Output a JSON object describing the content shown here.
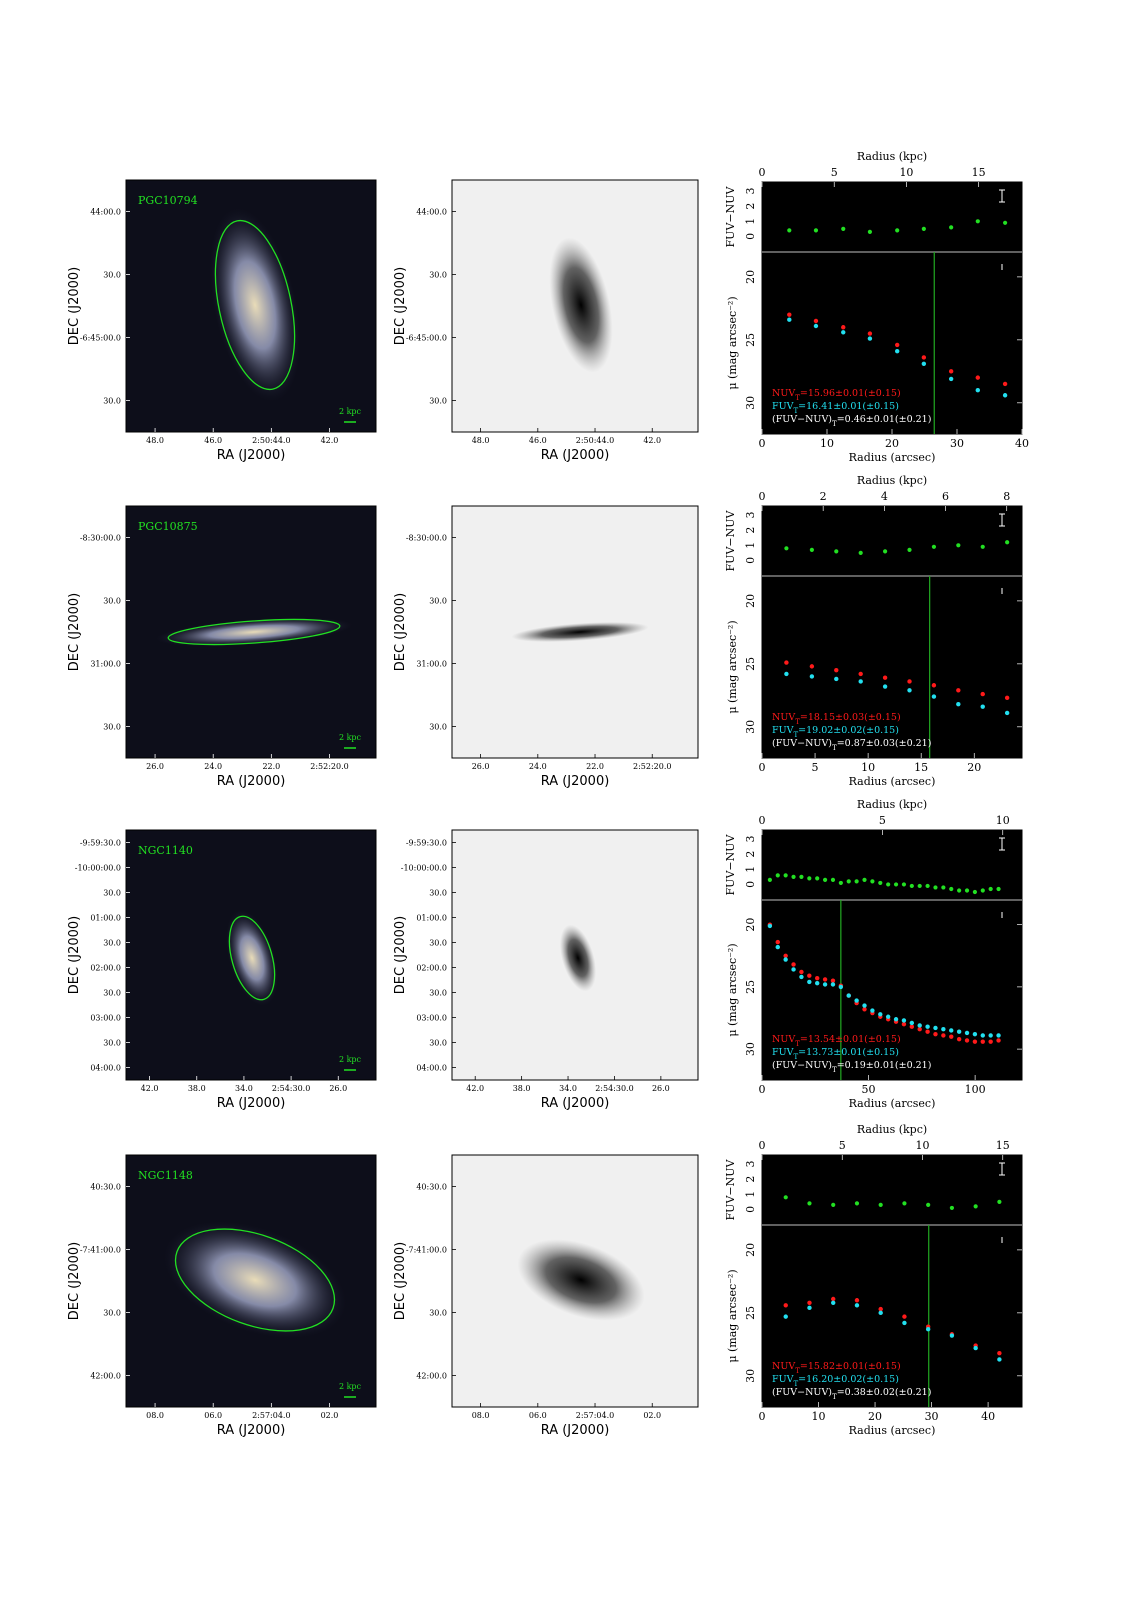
{
  "figure": {
    "rows": [
      {
        "galaxy": "PGC10794",
        "scalebar": "2 kpc",
        "ra_ticks": [
          "48.0",
          "46.0",
          "2:50:44.0",
          "42.0"
        ],
        "dec_ticks": [
          "44:00.0",
          "30.0",
          "-6:45:00.0",
          "30.0"
        ],
        "ra_label": "RA (J2000)",
        "dec_label": "DEC (J2000)",
        "kpc_ticks": [
          "0",
          "5",
          "10",
          "15"
        ],
        "kpc_max": 18,
        "arcsec_ticks": [
          "0",
          "10",
          "20",
          "30",
          "40"
        ],
        "arcsec_max": 40,
        "color_ticks": [
          "3",
          "2",
          "1",
          "0"
        ],
        "sb_ticks": [
          "20",
          "25",
          "30"
        ],
        "radius_kpc_label": "Radius (kpc)",
        "radius_arcsec_label": "Radius (arcsec)",
        "color_label": "FUV−NUV",
        "sb_label": "μ (mag arcsec⁻²)",
        "vline_arcsec": 26.5,
        "nuv_text": "NUV_T=15.96±0.01(±0.15)",
        "fuv_text": "FUV_T=16.41±0.01(±0.15)",
        "col_text": "(FUV−NUV)_T=0.46±0.01(±0.21)",
        "profile": {
          "r": [
            4.2,
            8.3,
            12.5,
            16.6,
            20.8,
            24.9,
            29.1,
            33.2,
            37.4
          ],
          "nuv": [
            23.0,
            23.5,
            24.0,
            24.5,
            25.4,
            26.4,
            27.5,
            28.0,
            28.5
          ],
          "fuv": [
            23.4,
            23.9,
            24.4,
            24.9,
            25.9,
            26.9,
            28.1,
            29.0,
            29.4
          ],
          "color": [
            0.4,
            0.4,
            0.5,
            0.3,
            0.4,
            0.5,
            0.6,
            1.0,
            0.9
          ]
        }
      },
      {
        "galaxy": "PGC10875",
        "scalebar": "2 kpc",
        "ra_ticks": [
          "26.0",
          "24.0",
          "22.0",
          "2:52:20.0"
        ],
        "dec_ticks": [
          "-8:30:00.0",
          "30.0",
          "31:00.0",
          "30.0"
        ],
        "ra_label": "RA (J2000)",
        "dec_label": "DEC (J2000)",
        "kpc_ticks": [
          "0",
          "2",
          "4",
          "6",
          "8"
        ],
        "kpc_max": 8.5,
        "arcsec_ticks": [
          "0",
          "5",
          "10",
          "15",
          "20"
        ],
        "arcsec_max": 24.5,
        "color_ticks": [
          "3",
          "2",
          "1",
          "0"
        ],
        "sb_ticks": [
          "20",
          "25",
          "30"
        ],
        "radius_kpc_label": "Radius (kpc)",
        "radius_arcsec_label": "Radius (arcsec)",
        "color_label": "FUV−NUV",
        "sb_label": "μ (mag arcsec⁻²)",
        "vline_arcsec": 15.8,
        "nuv_text": "NUV_T=18.15±0.03(±0.15)",
        "fuv_text": "FUV_T=19.02±0.02(±0.15)",
        "col_text": "(FUV−NUV)_T=0.87±0.03(±0.21)",
        "profile": {
          "r": [
            2.3,
            4.7,
            7.0,
            9.3,
            11.6,
            13.9,
            16.2,
            18.5,
            20.8,
            23.1
          ],
          "nuv": [
            24.9,
            25.2,
            25.5,
            25.8,
            26.1,
            26.4,
            26.7,
            27.1,
            27.4,
            27.7
          ],
          "fuv": [
            25.8,
            26.0,
            26.2,
            26.4,
            26.8,
            27.1,
            27.6,
            28.2,
            28.4,
            28.9
          ],
          "color": [
            0.8,
            0.7,
            0.6,
            0.5,
            0.6,
            0.7,
            0.9,
            1.0,
            0.9,
            1.2
          ]
        }
      },
      {
        "galaxy": "NGC1140",
        "scalebar": "2 kpc",
        "ra_ticks": [
          "42.0",
          "38.0",
          "34.0",
          "2:54:30.0",
          "26.0"
        ],
        "dec_ticks": [
          "-9:59:30.0",
          "-10:00:00.0",
          "30.0",
          "01:00.0",
          "30.0",
          "02:00.0",
          "30.0",
          "03:00.0",
          "30.0",
          "04:00.0"
        ],
        "ra_label": "RA (J2000)",
        "dec_label": "DEC (J2000)",
        "kpc_ticks": [
          "0",
          "5",
          "10"
        ],
        "kpc_max": 10.8,
        "arcsec_ticks": [
          "0",
          "50",
          "100"
        ],
        "arcsec_max": 122,
        "color_ticks": [
          "3",
          "2",
          "1",
          "0"
        ],
        "sb_ticks": [
          "20",
          "25",
          "30"
        ],
        "radius_kpc_label": "Radius (kpc)",
        "radius_arcsec_label": "Radius (arcsec)",
        "color_label": "FUV−NUV",
        "sb_label": "μ (mag arcsec⁻²)",
        "vline_arcsec": 37,
        "nuv_text": "NUV_T=13.54±0.01(±0.15)",
        "fuv_text": "FUV_T=13.73±0.01(±0.15)",
        "col_text": "(FUV−NUV)_T=0.19±0.01(±0.21)",
        "profile": {
          "r": [
            3.7,
            7.4,
            11.1,
            14.8,
            18.5,
            22.2,
            25.9,
            29.6,
            33.3,
            37.0,
            40.7,
            44.4,
            48.1,
            51.8,
            55.5,
            59.2,
            62.9,
            66.6,
            70.3,
            74.0,
            77.7,
            81.4,
            85.1,
            88.8,
            92.5,
            96.2,
            99.9,
            103.6,
            107.3,
            111.0
          ],
          "nuv": [
            20.0,
            21.4,
            22.5,
            23.2,
            23.8,
            24.1,
            24.3,
            24.4,
            24.5,
            24.9,
            25.7,
            26.3,
            26.8,
            27.1,
            27.4,
            27.6,
            27.8,
            28.0,
            28.2,
            28.4,
            28.6,
            28.8,
            28.9,
            29.0,
            29.2,
            29.3,
            29.4,
            29.4,
            29.4,
            29.3
          ],
          "fuv": [
            20.1,
            21.8,
            22.8,
            23.6,
            24.2,
            24.6,
            24.7,
            24.8,
            24.8,
            25.0,
            25.7,
            26.1,
            26.5,
            26.9,
            27.2,
            27.4,
            27.6,
            27.7,
            27.9,
            28.1,
            28.2,
            28.3,
            28.4,
            28.5,
            28.6,
            28.7,
            28.8,
            28.9,
            28.9,
            28.9
          ],
          "color": [
            0.3,
            0.6,
            0.6,
            0.5,
            0.5,
            0.4,
            0.4,
            0.3,
            0.3,
            0.1,
            0.2,
            0.2,
            0.3,
            0.2,
            0.1,
            0.0,
            0.0,
            0.0,
            -0.1,
            -0.1,
            -0.1,
            -0.2,
            -0.2,
            -0.3,
            -0.4,
            -0.4,
            -0.5,
            -0.4,
            -0.3,
            -0.3
          ]
        }
      },
      {
        "galaxy": "NGC1148",
        "scalebar": "2 kpc",
        "ra_ticks": [
          "08.0",
          "06.0",
          "2:57:04.0",
          "02.0"
        ],
        "dec_ticks": [
          "40:30.0",
          "-7:41:00.0",
          "30.0",
          "42:00.0"
        ],
        "ra_label": "RA (J2000)",
        "dec_label": "DEC (J2000)",
        "kpc_ticks": [
          "0",
          "5",
          "10",
          "15"
        ],
        "kpc_max": 16.2,
        "arcsec_ticks": [
          "0",
          "10",
          "20",
          "30",
          "40"
        ],
        "arcsec_max": 46,
        "color_ticks": [
          "3",
          "2",
          "1",
          "0"
        ],
        "sb_ticks": [
          "20",
          "25",
          "30"
        ],
        "radius_kpc_label": "Radius (kpc)",
        "radius_arcsec_label": "Radius (arcsec)",
        "color_label": "FUV−NUV",
        "sb_label": "μ (mag arcsec⁻²)",
        "vline_arcsec": 29.5,
        "nuv_text": "NUV_T=15.82±0.01(±0.15)",
        "fuv_text": "FUV_T=16.20±0.02(±0.15)",
        "col_text": "(FUV−NUV)_T=0.38±0.02(±0.21)",
        "profile": {
          "r": [
            4.2,
            8.4,
            12.6,
            16.8,
            21.0,
            25.2,
            29.4,
            33.6,
            37.8,
            42.0
          ],
          "nuv": [
            24.4,
            24.2,
            23.9,
            24.0,
            24.7,
            25.3,
            26.1,
            26.7,
            27.6,
            28.2
          ],
          "fuv": [
            25.3,
            24.6,
            24.2,
            24.4,
            25.0,
            25.8,
            26.3,
            26.8,
            27.8,
            28.7
          ],
          "color": [
            0.8,
            0.4,
            0.3,
            0.4,
            0.3,
            0.4,
            0.3,
            0.1,
            0.2,
            0.5
          ]
        }
      }
    ],
    "colors": {
      "nuv": "#ff1a1a",
      "fuv": "#22e0f0",
      "color": "#22e022",
      "vline": "#22aa22",
      "ellipse": "#22e022"
    }
  }
}
